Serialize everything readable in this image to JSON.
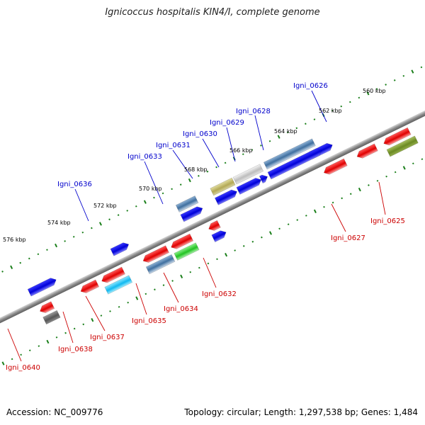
{
  "title": "Ignicoccus hospitalis KIN4/I, complete genome",
  "accession": "Accession: NC_009776",
  "summary": "Topology: circular; Length: 1,297,538 bp; Genes: 1,484",
  "colors": {
    "forward_label": "#0000cc",
    "reverse_label": "#cc0000",
    "backbone": "#8c8c8c",
    "tick": "#1a7f1a"
  },
  "scale_ticks": [
    {
      "label": "560 kbp"
    },
    {
      "label": "562 kbp"
    },
    {
      "label": "564 kbp"
    },
    {
      "label": "566 kbp"
    },
    {
      "label": "568 kbp"
    },
    {
      "label": "570 kbp"
    },
    {
      "label": "572 kbp"
    },
    {
      "label": "574 kbp"
    },
    {
      "label": "576 kbp"
    }
  ],
  "forward_labels": [
    {
      "label": "Igni_0626"
    },
    {
      "label": "Igni_0628"
    },
    {
      "label": "Igni_0629"
    },
    {
      "label": "Igni_0630"
    },
    {
      "label": "Igni_0631"
    },
    {
      "label": "Igni_0633"
    },
    {
      "label": "Igni_0636"
    }
  ],
  "reverse_labels": [
    {
      "label": "Igni_0625"
    },
    {
      "label": "Igni_0627"
    },
    {
      "label": "Igni_0632"
    },
    {
      "label": "Igni_0634"
    },
    {
      "label": "Igni_0635"
    },
    {
      "label": "Igni_0637"
    },
    {
      "label": "Igni_0638"
    },
    {
      "label": "Igni_0640"
    }
  ]
}
